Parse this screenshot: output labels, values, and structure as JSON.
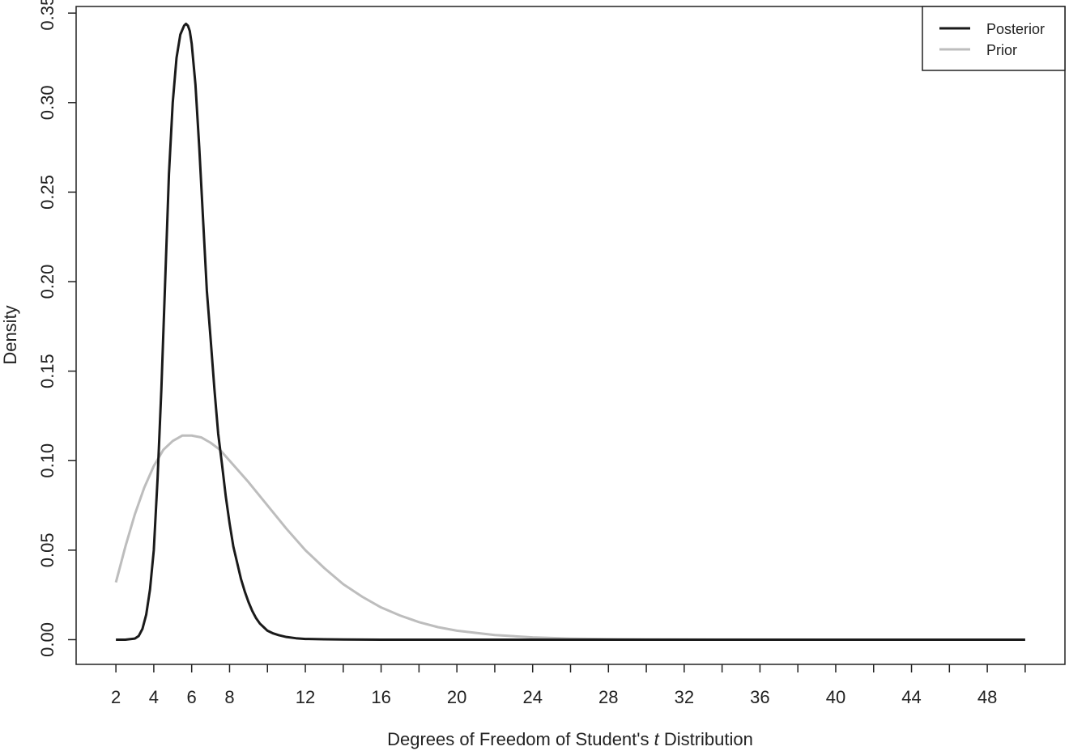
{
  "chart_data": {
    "type": "line",
    "title": "",
    "xlabel_prefix": "Degrees of Freedom of Student's ",
    "xlabel_italic": "t",
    "xlabel_suffix": " Distribution",
    "ylabel": "Density",
    "xlim": [
      -0.1,
      52.1
    ],
    "ylim": [
      -0.0138,
      0.3537
    ],
    "x_ticks": [
      2,
      4,
      6,
      8,
      12,
      16,
      20,
      24,
      28,
      32,
      36,
      40,
      44,
      48
    ],
    "x_minor_ticks": [
      10,
      14,
      18,
      22,
      26,
      30,
      34,
      38,
      42,
      46,
      50
    ],
    "y_ticks": [
      "0.00",
      "0.05",
      "0.10",
      "0.15",
      "0.20",
      "0.25",
      "0.30",
      "0.35"
    ],
    "grid": false,
    "legend_position": "top-right",
    "series": [
      {
        "name": "Posterior",
        "color": "#1a1a1a",
        "x": [
          2.0,
          2.5,
          3.0,
          3.2,
          3.4,
          3.6,
          3.8,
          4.0,
          4.2,
          4.4,
          4.6,
          4.8,
          5.0,
          5.2,
          5.4,
          5.6,
          5.7,
          5.8,
          5.9,
          6.0,
          6.2,
          6.4,
          6.6,
          6.8,
          7.0,
          7.2,
          7.4,
          7.6,
          7.8,
          8.0,
          8.2,
          8.4,
          8.6,
          8.8,
          9.0,
          9.2,
          9.4,
          9.6,
          9.8,
          10.0,
          10.3,
          10.6,
          11.0,
          11.5,
          12.0,
          13.0,
          14.0,
          16.0,
          20.0,
          30.0,
          40.0,
          50.0
        ],
        "y": [
          0.0,
          0.0,
          0.0006,
          0.002,
          0.006,
          0.014,
          0.028,
          0.05,
          0.09,
          0.14,
          0.2,
          0.26,
          0.3,
          0.325,
          0.338,
          0.343,
          0.344,
          0.343,
          0.34,
          0.333,
          0.31,
          0.275,
          0.235,
          0.195,
          0.168,
          0.14,
          0.115,
          0.098,
          0.08,
          0.065,
          0.052,
          0.043,
          0.034,
          0.027,
          0.021,
          0.016,
          0.012,
          0.009,
          0.007,
          0.005,
          0.0035,
          0.0025,
          0.0015,
          0.0008,
          0.0004,
          0.0002,
          0.0001,
          0.0,
          0.0,
          0.0,
          0.0,
          0.0
        ]
      },
      {
        "name": "Prior",
        "color": "#bdbdbd",
        "x": [
          2,
          2.5,
          3,
          3.5,
          4,
          4.5,
          5,
          5.5,
          6,
          6.5,
          7,
          7.5,
          8,
          9,
          10,
          11,
          12,
          13,
          14,
          15,
          16,
          17,
          18,
          19,
          20,
          22,
          24,
          26,
          28,
          30,
          35,
          40,
          45,
          50
        ],
        "y": [
          0.032,
          0.052,
          0.07,
          0.085,
          0.097,
          0.106,
          0.111,
          0.114,
          0.114,
          0.113,
          0.11,
          0.106,
          0.1,
          0.088,
          0.075,
          0.062,
          0.05,
          0.04,
          0.031,
          0.024,
          0.018,
          0.0135,
          0.0098,
          0.007,
          0.005,
          0.0026,
          0.0013,
          0.0006,
          0.0003,
          0.00015,
          2e-05,
          0.0,
          0.0,
          0.0
        ]
      }
    ]
  }
}
